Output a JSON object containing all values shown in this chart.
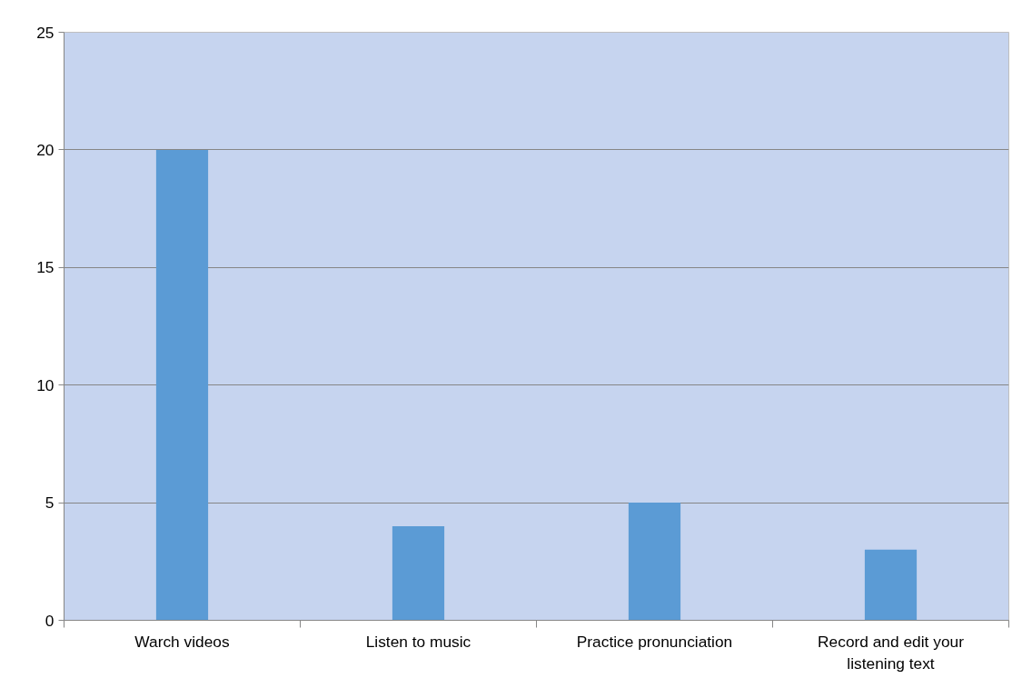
{
  "chart_data": {
    "type": "bar",
    "categories": [
      "Warch videos",
      "Listen to music",
      "Practice pronunciation",
      "Record and edit your listening text"
    ],
    "values": [
      20,
      4,
      5,
      3
    ],
    "color": "#5b9bd5",
    "ylim": [
      0,
      25
    ],
    "yticks": [
      0,
      5,
      10,
      15,
      20,
      25
    ],
    "grid": "y"
  }
}
